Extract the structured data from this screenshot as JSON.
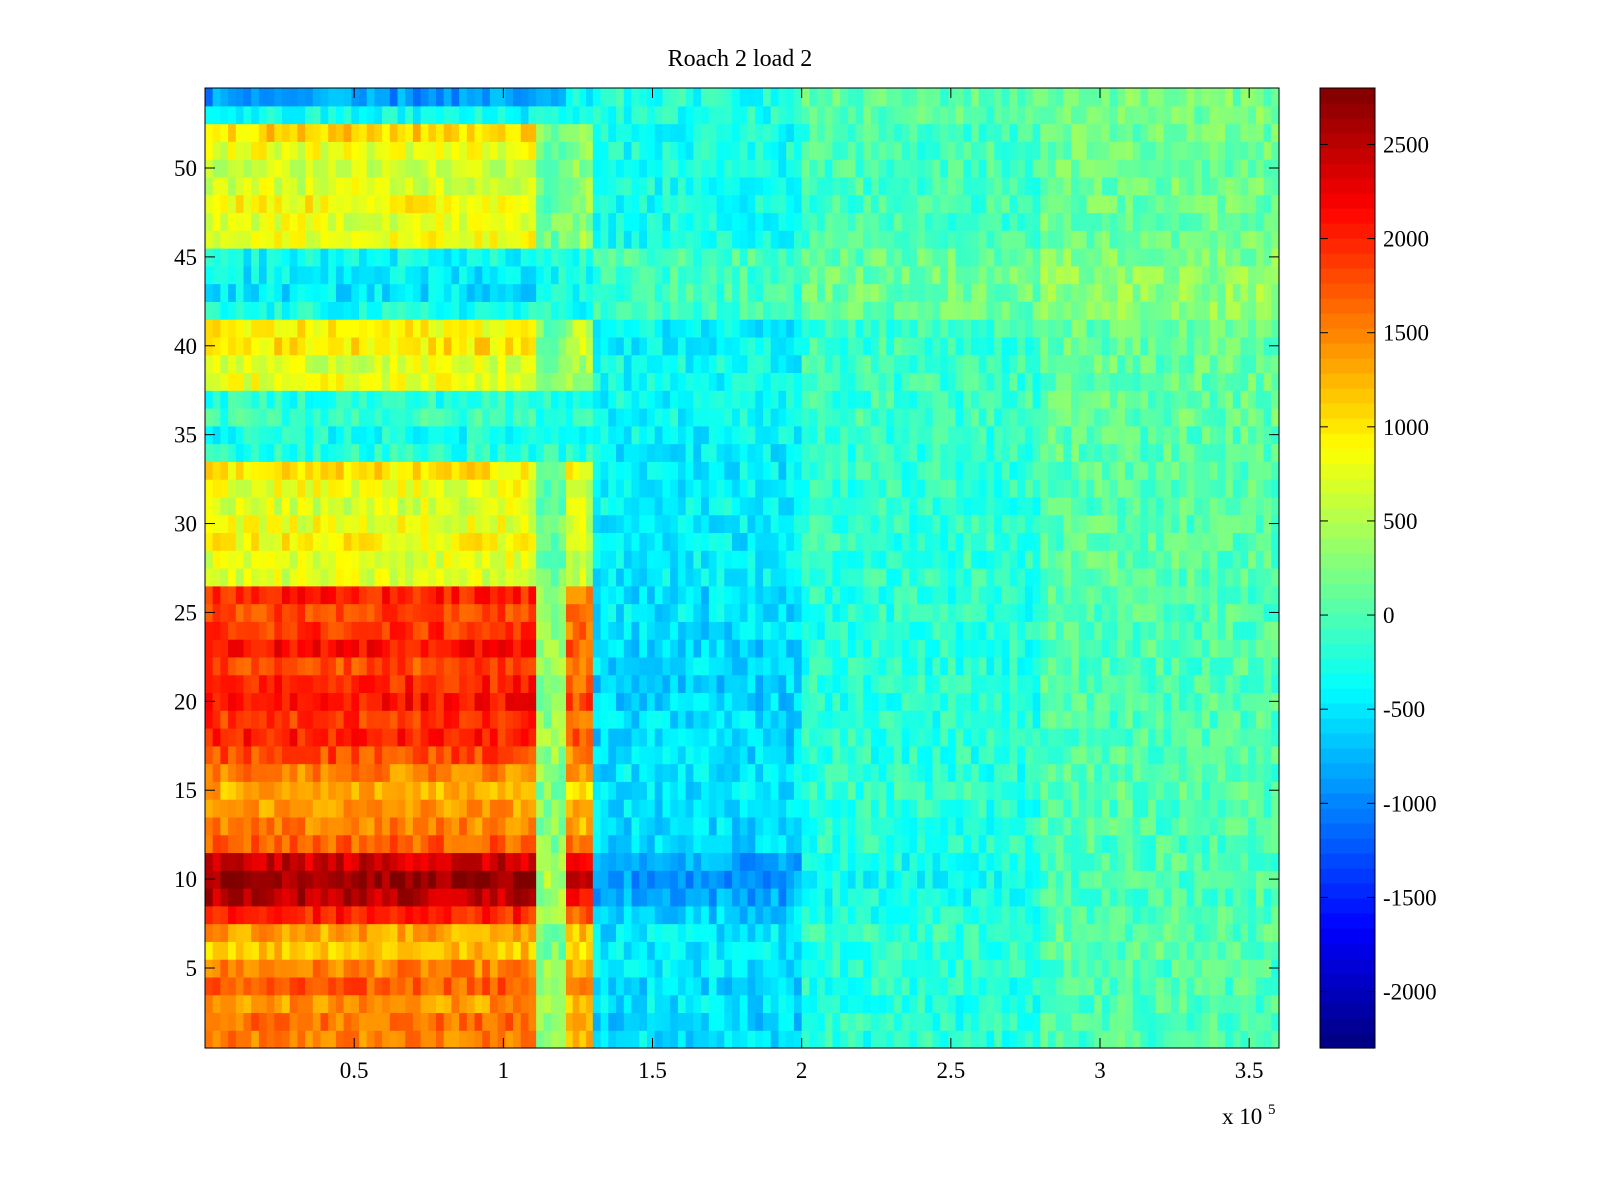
{
  "chart_data": {
    "type": "heatmap",
    "title": "Roach 2 load 2",
    "x_multiplier_label": "x 10",
    "x_multiplier_exponent": "5",
    "xlim": [
      0,
      360000
    ],
    "ylim": [
      0.5,
      54.5
    ],
    "x_ticks": [
      50000,
      100000,
      150000,
      200000,
      250000,
      300000,
      350000
    ],
    "x_tick_labels": [
      "0.5",
      "1",
      "1.5",
      "2",
      "2.5",
      "3",
      "3.5"
    ],
    "y_ticks": [
      5,
      10,
      15,
      20,
      25,
      30,
      35,
      40,
      45,
      50
    ],
    "y_tick_labels": [
      "5",
      "10",
      "15",
      "20",
      "25",
      "30",
      "35",
      "40",
      "45",
      "50"
    ],
    "colorbar": {
      "colormap": "jet",
      "clim": [
        -2300,
        2800
      ],
      "ticks": [
        -2000,
        -1500,
        -1000,
        -500,
        0,
        500,
        1000,
        1500,
        2000,
        2500
      ],
      "tick_labels": [
        "-2000",
        "-1500",
        "-1000",
        "-500",
        "0",
        "500",
        "1000",
        "1500",
        "2000",
        "2500"
      ]
    },
    "rows": 54,
    "x_segments": [
      {
        "x_start": 0,
        "x_end": 111000
      },
      {
        "x_start": 111000,
        "x_end": 121000
      },
      {
        "x_start": 121000,
        "x_end": 130000
      },
      {
        "x_start": 130000,
        "x_end": 200000
      },
      {
        "x_start": 200000,
        "x_end": 280000
      },
      {
        "x_start": 280000,
        "x_end": 360000
      }
    ],
    "row_values": [
      [
        1500,
        300,
        1300,
        -500,
        -200,
        0
      ],
      [
        1600,
        300,
        1300,
        -600,
        -200,
        0
      ],
      [
        1400,
        300,
        1200,
        -500,
        -200,
        0
      ],
      [
        1700,
        300,
        1400,
        -550,
        -200,
        0
      ],
      [
        1500,
        300,
        1300,
        -500,
        -200,
        0
      ],
      [
        1200,
        250,
        1100,
        -450,
        -150,
        50
      ],
      [
        1350,
        250,
        1200,
        -500,
        -150,
        50
      ],
      [
        2000,
        350,
        1700,
        -600,
        -250,
        0
      ],
      [
        2500,
        400,
        2100,
        -800,
        -300,
        0
      ],
      [
        2700,
        400,
        2300,
        -900,
        -350,
        0
      ],
      [
        2400,
        400,
        2000,
        -800,
        -300,
        0
      ],
      [
        1700,
        300,
        1500,
        -600,
        -200,
        0
      ],
      [
        1500,
        300,
        1300,
        -550,
        -200,
        0
      ],
      [
        1400,
        300,
        1200,
        -500,
        -200,
        0
      ],
      [
        1300,
        250,
        1100,
        -500,
        -150,
        50
      ],
      [
        1500,
        300,
        1300,
        -500,
        -200,
        0
      ],
      [
        1800,
        350,
        1500,
        -550,
        -200,
        0
      ],
      [
        2000,
        350,
        1700,
        -600,
        -200,
        0
      ],
      [
        1900,
        350,
        1600,
        -550,
        -200,
        0
      ],
      [
        2100,
        350,
        1800,
        -600,
        -250,
        0
      ],
      [
        2000,
        350,
        1700,
        -600,
        -200,
        0
      ],
      [
        1800,
        350,
        1500,
        -550,
        -200,
        0
      ],
      [
        2100,
        350,
        1700,
        -600,
        -200,
        0
      ],
      [
        1900,
        350,
        1600,
        -550,
        -200,
        0
      ],
      [
        1800,
        300,
        1500,
        -500,
        -200,
        0
      ],
      [
        2000,
        350,
        1600,
        -550,
        -200,
        0
      ],
      [
        700,
        150,
        600,
        -450,
        -150,
        50
      ],
      [
        750,
        150,
        650,
        -450,
        -150,
        50
      ],
      [
        900,
        150,
        700,
        -450,
        -150,
        50
      ],
      [
        800,
        150,
        650,
        -450,
        -150,
        50
      ],
      [
        700,
        150,
        600,
        -400,
        -150,
        50
      ],
      [
        800,
        150,
        650,
        -450,
        -150,
        50
      ],
      [
        1000,
        150,
        850,
        -450,
        -150,
        50
      ],
      [
        -200,
        -200,
        -200,
        -450,
        -150,
        50
      ],
      [
        -300,
        -250,
        -250,
        -400,
        -150,
        50
      ],
      [
        -100,
        -150,
        -150,
        -350,
        -100,
        100
      ],
      [
        -200,
        -200,
        -200,
        -350,
        -100,
        100
      ],
      [
        800,
        150,
        500,
        -350,
        -100,
        100
      ],
      [
        700,
        150,
        450,
        -350,
        -100,
        100
      ],
      [
        1000,
        200,
        600,
        -400,
        -100,
        100
      ],
      [
        900,
        150,
        550,
        -400,
        -100,
        100
      ],
      [
        -300,
        -250,
        -250,
        -100,
        100,
        300
      ],
      [
        -500,
        -300,
        -300,
        -50,
        150,
        350
      ],
      [
        -450,
        -300,
        -300,
        -50,
        150,
        300
      ],
      [
        -350,
        -250,
        -250,
        -50,
        100,
        250
      ],
      [
        800,
        150,
        400,
        -300,
        -50,
        150
      ],
      [
        750,
        150,
        350,
        -300,
        -50,
        150
      ],
      [
        900,
        150,
        400,
        -300,
        -50,
        150
      ],
      [
        700,
        150,
        350,
        -300,
        -50,
        150
      ],
      [
        650,
        100,
        300,
        -300,
        -50,
        150
      ],
      [
        800,
        150,
        350,
        -300,
        -50,
        150
      ],
      [
        1100,
        200,
        500,
        -300,
        -50,
        150
      ],
      [
        -350,
        -250,
        -250,
        -250,
        50,
        200
      ],
      [
        -900,
        -900,
        -400,
        -250,
        50,
        200
      ]
    ]
  }
}
